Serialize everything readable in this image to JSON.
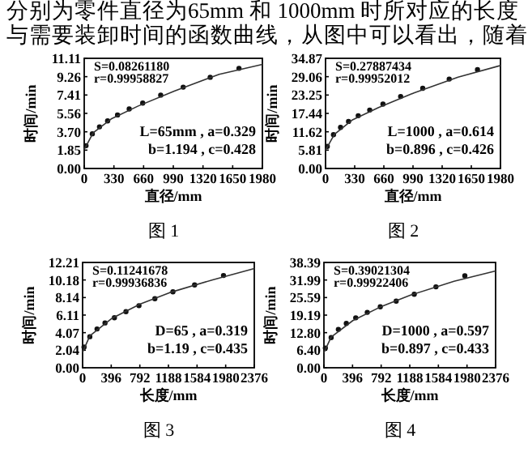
{
  "chart_data": [
    {
      "type": "other",
      "annotations": [
        "分别为零件直径为65mm 和 1000mm 时所对应的长度",
        "与需要装卸时间的函数曲线，从图中可以看出，随着"
      ]
    },
    {
      "type": "scatter",
      "title": "图 1",
      "xlabel": "直径/mm",
      "ylabel": "时间/min",
      "xlim": [
        0,
        1980
      ],
      "ylim": [
        0,
        11.11
      ],
      "xticks": [
        0,
        330,
        660,
        990,
        1320,
        1650,
        1980
      ],
      "yticks": [
        {
          "value": 0,
          "label": "0.00"
        },
        1.85,
        {
          "value": 3.7,
          "label": "3.70"
        },
        5.56,
        7.41,
        9.26,
        11.11
      ],
      "grid": false,
      "annotations": [
        "S=0.08261180",
        "r=0.99958827",
        "L=65mm , a=0.329",
        "b=1.194 , c=0.428"
      ],
      "series": [
        {
          "color": "#111111",
          "marker": "circle",
          "x": [
            20,
            90,
            170,
            260,
            370,
            500,
            650,
            850,
            1100,
            1400,
            1720
          ],
          "values": [
            2.3,
            3.5,
            4.2,
            4.8,
            5.4,
            6.0,
            6.6,
            7.4,
            8.2,
            9.2,
            10.1
          ]
        },
        {
          "type": "line",
          "color": "#333333",
          "marker": "none",
          "line_style": "solid",
          "x": [
            0,
            100,
            300,
            600,
            1000,
            1500,
            1980
          ],
          "values": [
            1.9,
            3.6,
            5.0,
            6.3,
            7.8,
            9.5,
            10.5
          ]
        }
      ]
    },
    {
      "type": "scatter",
      "title": "图 2",
      "xlabel": "直径/mm",
      "ylabel": "时间/min",
      "xlim": [
        0,
        1980
      ],
      "ylim": [
        0,
        34.87
      ],
      "xticks": [
        0,
        330,
        660,
        990,
        1320,
        1650,
        1980
      ],
      "yticks": [
        {
          "value": 0,
          "label": "0.00"
        },
        5.81,
        11.62,
        17.44,
        23.25,
        29.06,
        34.87
      ],
      "grid": false,
      "annotations": [
        "S=0.27887434",
        "r=0.99952012",
        "L=1000 , a=0.614",
        "b=0.896 , c=0.426"
      ],
      "series": [
        {
          "color": "#111111",
          "marker": "circle",
          "x": [
            20,
            90,
            170,
            260,
            370,
            500,
            650,
            850,
            1100,
            1400,
            1720
          ],
          "values": [
            7.0,
            10.7,
            13.0,
            14.9,
            16.7,
            18.5,
            20.4,
            22.8,
            25.4,
            28.3,
            31.3
          ]
        },
        {
          "type": "line",
          "color": "#333333",
          "marker": "none",
          "line_style": "solid",
          "x": [
            0,
            100,
            300,
            600,
            1000,
            1500,
            1980
          ],
          "values": [
            5.8,
            10.8,
            15.3,
            19.3,
            23.9,
            28.9,
            32.6
          ]
        }
      ]
    },
    {
      "type": "scatter",
      "title": "图 3",
      "xlabel": "长度/mm",
      "ylabel": "时间/min",
      "xlim": [
        0,
        2376
      ],
      "ylim": [
        0,
        12.21
      ],
      "xticks": [
        0,
        396,
        792,
        1188,
        1584,
        1980,
        2376
      ],
      "yticks": [
        {
          "value": 0,
          "label": "0.00"
        },
        2.04,
        4.07,
        6.11,
        8.14,
        10.18,
        12.21
      ],
      "grid": false,
      "annotations": [
        "S=0.11241678",
        "r=0.99936836",
        "D=65 , a=0.319",
        "b=1.19 , c=0.435"
      ],
      "series": [
        {
          "color": "#111111",
          "marker": "circle",
          "x": [
            20,
            100,
            200,
            310,
            440,
            600,
            780,
            1000,
            1250,
            1550,
            1950
          ],
          "values": [
            2.4,
            3.6,
            4.5,
            5.2,
            5.8,
            6.5,
            7.2,
            8.0,
            8.8,
            9.6,
            10.7
          ]
        },
        {
          "type": "line",
          "color": "#333333",
          "marker": "none",
          "line_style": "solid",
          "x": [
            0,
            100,
            400,
            800,
            1200,
            1800,
            2376
          ],
          "values": [
            1.8,
            3.7,
            5.7,
            7.4,
            8.7,
            10.2,
            11.5
          ]
        }
      ]
    },
    {
      "type": "scatter",
      "title": "图 4",
      "xlabel": "长度/mm",
      "ylabel": "时间/min",
      "xlim": [
        0,
        2376
      ],
      "ylim": [
        0,
        38.39
      ],
      "xticks": [
        0,
        396,
        792,
        1188,
        1584,
        1980,
        2376
      ],
      "yticks": [
        {
          "value": 0,
          "label": "0.00"
        },
        {
          "value": 6.4,
          "label": "6.40"
        },
        {
          "value": 12.8,
          "label": "12.80"
        },
        19.19,
        25.59,
        31.99,
        38.39
      ],
      "grid": false,
      "annotations": [
        "S=0.39021304",
        "r=0.99922406",
        "D=1000 , a=0.597",
        "b=0.897 , c=0.433"
      ],
      "series": [
        {
          "color": "#111111",
          "marker": "circle",
          "x": [
            20,
            100,
            200,
            310,
            440,
            600,
            780,
            1000,
            1250,
            1550,
            1950
          ],
          "values": [
            7.2,
            11.0,
            14.0,
            16.2,
            18.2,
            20.2,
            22.2,
            24.3,
            26.8,
            29.5,
            33.5
          ]
        },
        {
          "type": "line",
          "color": "#333333",
          "marker": "none",
          "line_style": "solid",
          "x": [
            0,
            100,
            400,
            800,
            1200,
            1800,
            2376
          ],
          "values": [
            5.5,
            11.2,
            17.2,
            22.4,
            26.5,
            31.5,
            35.3
          ]
        }
      ]
    }
  ]
}
